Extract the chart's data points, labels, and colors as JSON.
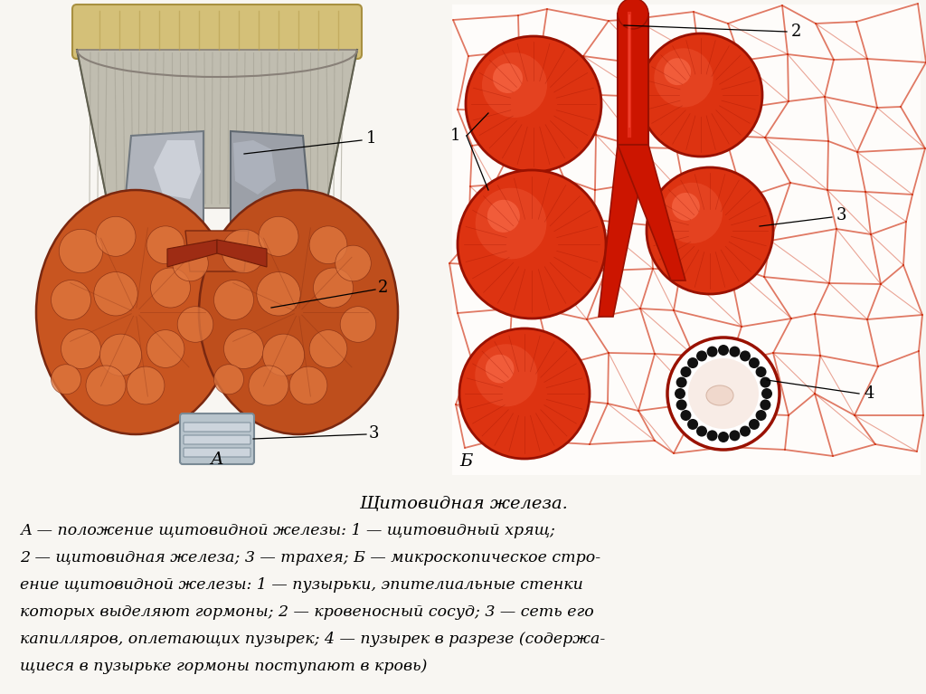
{
  "bg_color": "#f8f6f2",
  "white": "#ffffff",
  "title": "Щитовидная железа.",
  "label_A": "А",
  "label_B": "Б",
  "caption_lines": [
    "А — положение щитовидной железы: 1 — щитовидный хрящ;",
    "2 — щитовидная железа; 3 — трахея; Б — микроскопическое стро-",
    "ение щитовидной железы: 1 — пузырьки, эпителиальные стенки",
    "которых выделяют гормоны; 2 — кровеносный сосуд; 3 — сеть его",
    "капилляров, оплетающих пузырек; 4 — пузырек в разрезе (содержа-",
    "щиеся в пузырьке гормоны поступают в кровь)"
  ]
}
